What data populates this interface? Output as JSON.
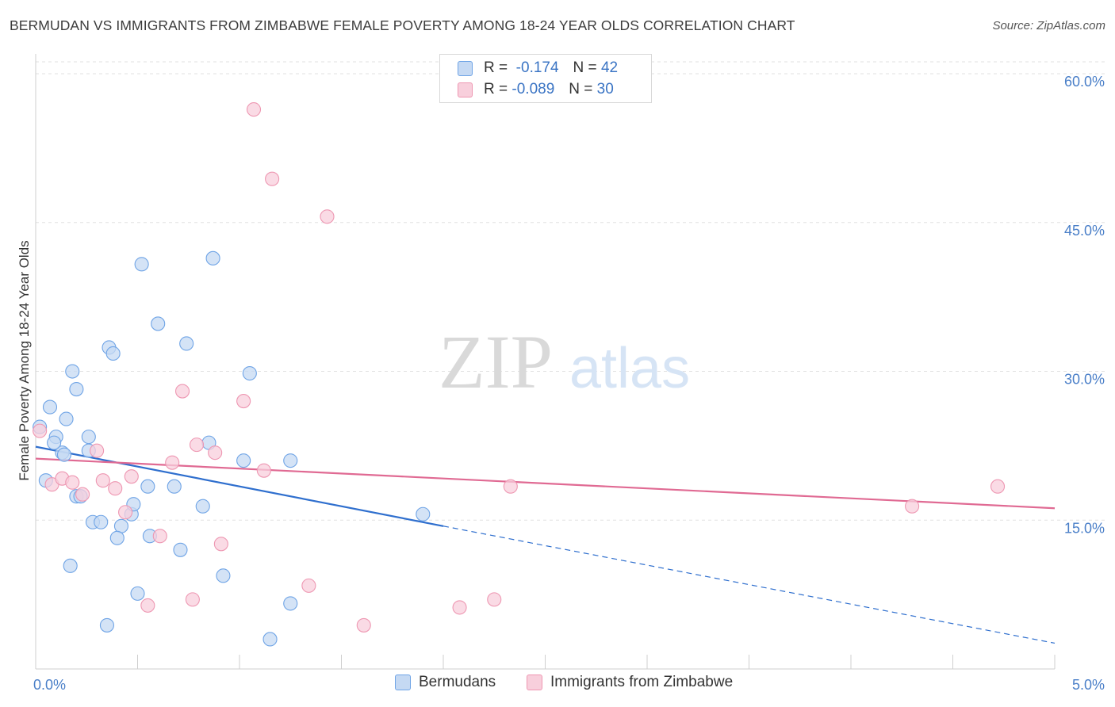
{
  "chart_data": {
    "type": "scatter",
    "title": "BERMUDAN VS IMMIGRANTS FROM ZIMBABWE FEMALE POVERTY AMONG 18-24 YEAR OLDS CORRELATION CHART",
    "source": "Source: ZipAtlas.com",
    "xlabel": "",
    "ylabel": "Female Poverty Among 18-24 Year Olds",
    "xlim": [
      0,
      5
    ],
    "ylim": [
      0,
      62
    ],
    "x_tick_labels": [
      "0.0%",
      "5.0%"
    ],
    "y_ticks": [
      15,
      30,
      45,
      60
    ],
    "y_tick_labels": [
      "15.0%",
      "30.0%",
      "45.0%",
      "60.0%"
    ],
    "grid": true,
    "watermark": {
      "zip": "ZIP",
      "atlas": "atlas"
    },
    "legend_stats": [
      {
        "r_label": "R =",
        "r_value": "-0.174",
        "n_label": "N =",
        "n_value": "42"
      },
      {
        "r_label": "R =",
        "r_value": "-0.089",
        "n_label": "N =",
        "n_value": "30"
      }
    ],
    "series": [
      {
        "name": "Bermudans",
        "color": "#6fa4e6",
        "fill": "#c5d9f3",
        "line_color": "#2f6fce",
        "trend": {
          "x0": 0,
          "y0": 22.4,
          "x1": 2.0,
          "y1": 14.4,
          "x_dash_end": 5.0,
          "y_dash_end": 2.6
        },
        "points": [
          [
            0.02,
            24.4
          ],
          [
            0.07,
            26.4
          ],
          [
            0.1,
            23.4
          ],
          [
            0.05,
            19.0
          ],
          [
            0.13,
            21.8
          ],
          [
            0.09,
            22.8
          ],
          [
            0.15,
            25.2
          ],
          [
            0.18,
            30.0
          ],
          [
            0.2,
            28.2
          ],
          [
            0.26,
            23.4
          ],
          [
            0.26,
            22.0
          ],
          [
            0.2,
            17.4
          ],
          [
            0.22,
            17.4
          ],
          [
            0.28,
            14.8
          ],
          [
            0.32,
            14.8
          ],
          [
            0.36,
            32.4
          ],
          [
            0.38,
            31.8
          ],
          [
            0.42,
            14.4
          ],
          [
            0.4,
            13.2
          ],
          [
            0.47,
            15.6
          ],
          [
            0.48,
            16.6
          ],
          [
            0.55,
            18.4
          ],
          [
            0.56,
            13.4
          ],
          [
            0.52,
            40.8
          ],
          [
            0.6,
            34.8
          ],
          [
            0.68,
            18.4
          ],
          [
            0.71,
            12.0
          ],
          [
            0.74,
            32.8
          ],
          [
            0.82,
            16.4
          ],
          [
            0.85,
            22.8
          ],
          [
            0.87,
            41.4
          ],
          [
            0.92,
            9.4
          ],
          [
            1.02,
            21.0
          ],
          [
            1.05,
            29.8
          ],
          [
            1.25,
            21.0
          ],
          [
            1.15,
            3.0
          ],
          [
            1.25,
            6.6
          ],
          [
            1.9,
            15.6
          ],
          [
            0.17,
            10.4
          ],
          [
            0.35,
            4.4
          ],
          [
            0.5,
            7.6
          ],
          [
            0.14,
            21.6
          ]
        ]
      },
      {
        "name": "Immigrants from Zimbabwe",
        "color": "#ee97b2",
        "fill": "#f8cfdc",
        "line_color": "#e06a93",
        "trend": {
          "x0": 0,
          "y0": 21.2,
          "x1": 5.0,
          "y1": 16.2
        },
        "points": [
          [
            0.02,
            24.0
          ],
          [
            0.08,
            18.6
          ],
          [
            0.13,
            19.2
          ],
          [
            0.18,
            18.8
          ],
          [
            0.23,
            17.6
          ],
          [
            0.3,
            22.0
          ],
          [
            0.33,
            19.0
          ],
          [
            0.39,
            18.2
          ],
          [
            0.44,
            15.8
          ],
          [
            0.47,
            19.4
          ],
          [
            0.55,
            6.4
          ],
          [
            0.61,
            13.4
          ],
          [
            0.67,
            20.8
          ],
          [
            0.72,
            28.0
          ],
          [
            0.77,
            7.0
          ],
          [
            0.79,
            22.6
          ],
          [
            0.88,
            21.8
          ],
          [
            0.91,
            12.6
          ],
          [
            1.02,
            27.0
          ],
          [
            1.07,
            56.4
          ],
          [
            1.12,
            20.0
          ],
          [
            1.16,
            49.4
          ],
          [
            1.34,
            8.4
          ],
          [
            1.43,
            45.6
          ],
          [
            1.61,
            4.4
          ],
          [
            2.08,
            6.2
          ],
          [
            2.25,
            7.0
          ],
          [
            2.33,
            18.4
          ],
          [
            4.3,
            16.4
          ],
          [
            4.72,
            18.4
          ]
        ]
      }
    ]
  }
}
